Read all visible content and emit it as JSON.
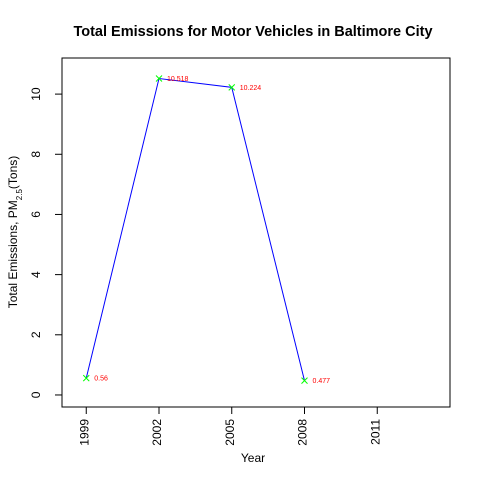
{
  "chart_data": {
    "type": "line",
    "title": "Total Emissions for Motor Vehicles in Baltimore City",
    "xlabel": "Year",
    "ylabel": {
      "prefix": "Total Emissions, PM",
      "subscript": "2.5",
      "suffix": "(Tons)"
    },
    "x_ticks": [
      1999,
      2002,
      2005,
      2008,
      2011
    ],
    "y_ticks": [
      0,
      2,
      4,
      6,
      8,
      10
    ],
    "xlim": [
      1998,
      2014
    ],
    "ylim": [
      -0.4,
      11.2
    ],
    "grid": false,
    "series": [
      {
        "x": [
          1999,
          2002,
          2005,
          2008
        ],
        "y": [
          0.56,
          10.518,
          10.224,
          0.477
        ],
        "labels": [
          "0.56",
          "10.518",
          "10.224",
          "0.477"
        ],
        "line_color": "#0000ff",
        "marker_color": "#00ff00",
        "label_color": "#ff0000"
      }
    ]
  }
}
